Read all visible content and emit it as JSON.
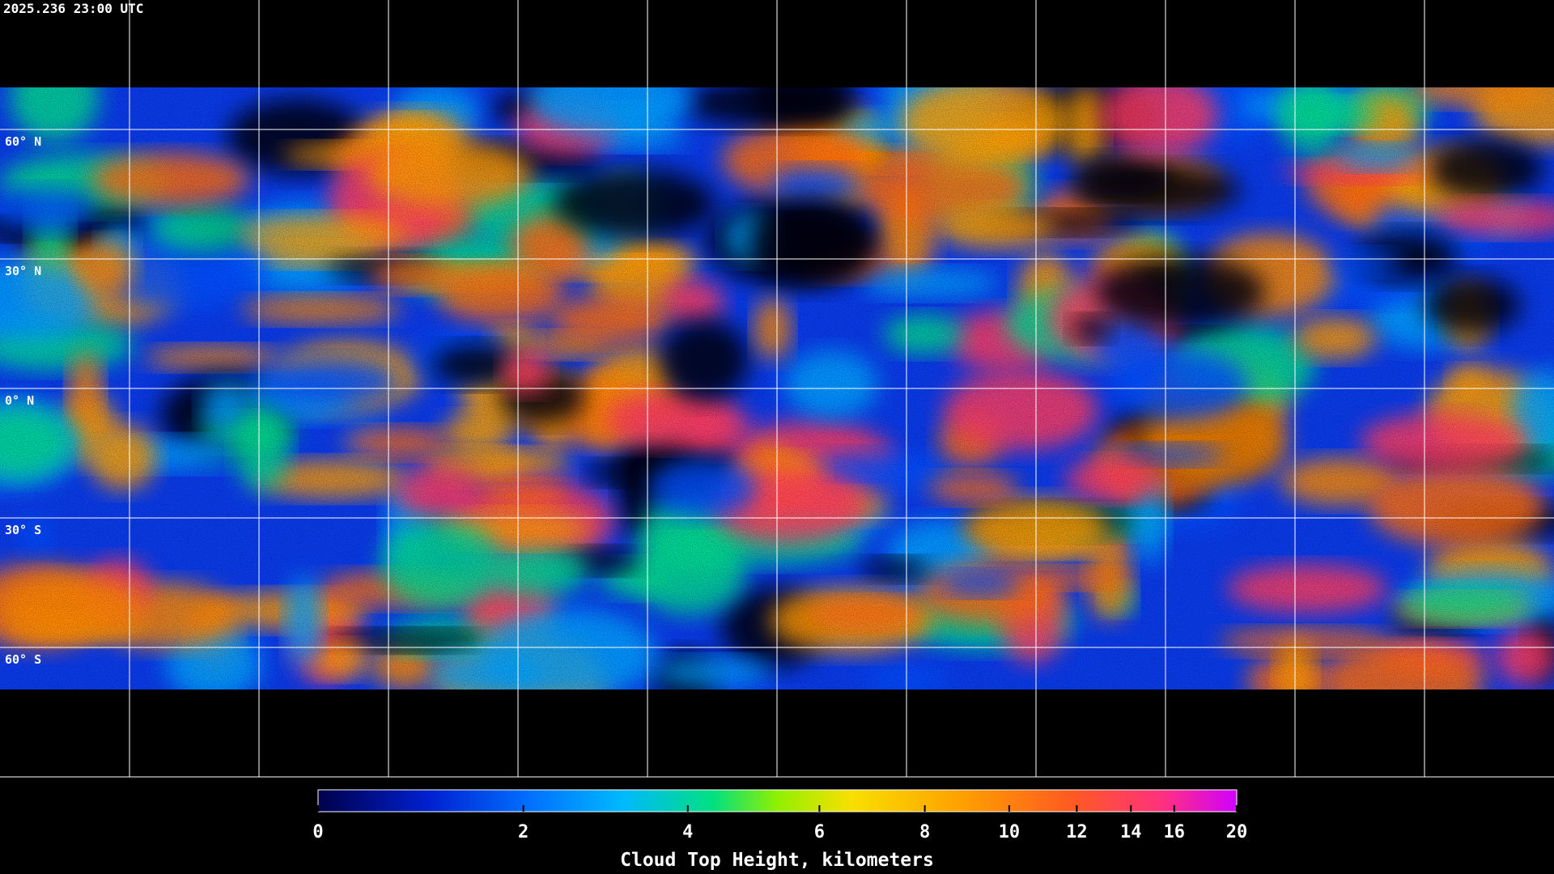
{
  "header": {
    "timestamp": "2025.236 23:00 UTC"
  },
  "map": {
    "latitude_labels": [
      "60° N",
      "30° N",
      "0° N",
      "30° S",
      "60° S"
    ]
  },
  "colorbar": {
    "label": "Cloud Top Height, kilometers",
    "ticks": [
      0,
      2,
      4,
      6,
      8,
      10,
      12,
      14,
      16,
      20
    ]
  }
}
